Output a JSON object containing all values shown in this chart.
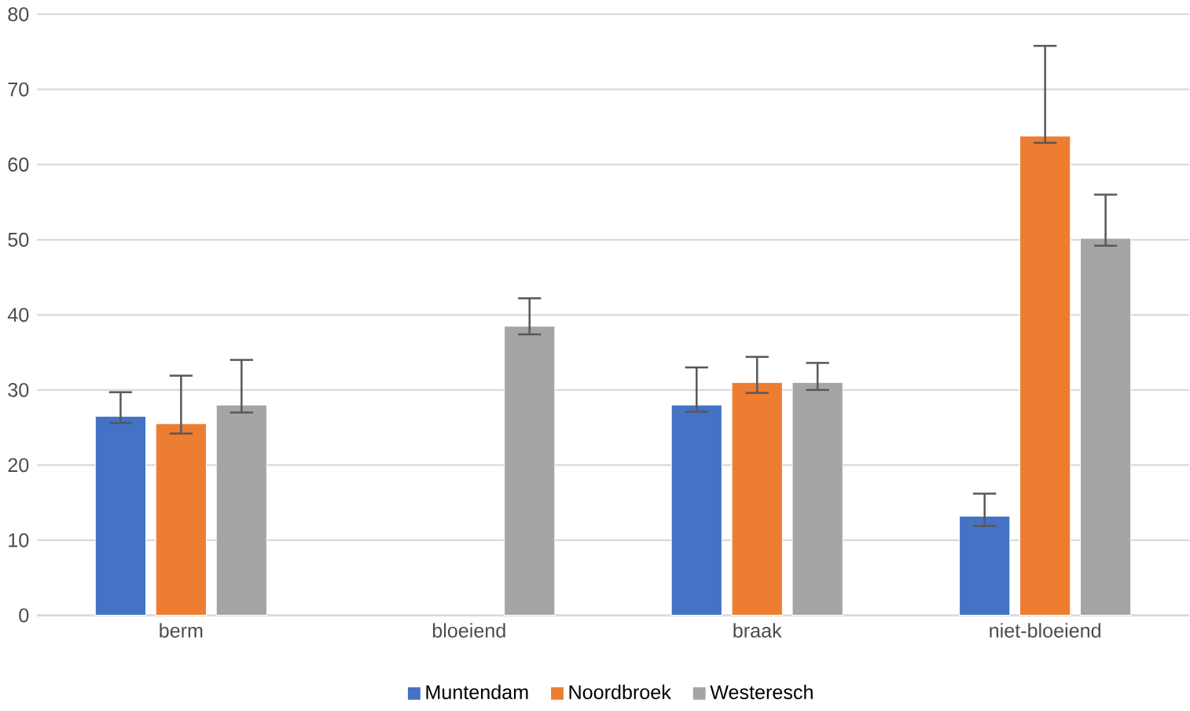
{
  "chart_data": {
    "type": "bar",
    "categories": [
      "berm",
      "bloeiend",
      "braak",
      "niet-bloeiend"
    ],
    "series": [
      {
        "name": "Muntendam",
        "color": "#4472c4",
        "values": [
          26.5,
          null,
          28,
          13.2
        ],
        "errors": [
          [
            25.6,
            29.7
          ],
          null,
          [
            27.1,
            33.0
          ],
          [
            11.9,
            16.2
          ]
        ]
      },
      {
        "name": "Noordbroek",
        "color": "#ed7d31",
        "values": [
          25.5,
          null,
          31,
          63.8
        ],
        "errors": [
          [
            24.2,
            31.9
          ],
          null,
          [
            29.6,
            34.4
          ],
          [
            62.9,
            75.8
          ]
        ]
      },
      {
        "name": "Westeresch",
        "color": "#a5a5a5",
        "values": [
          28,
          38.5,
          31,
          50.2
        ],
        "errors": [
          [
            27.0,
            34.0
          ],
          [
            37.4,
            42.2
          ],
          [
            30.0,
            33.6
          ],
          [
            49.2,
            56.0
          ]
        ]
      }
    ],
    "ylim": [
      0,
      80
    ],
    "yticks": [
      0,
      10,
      20,
      30,
      40,
      50,
      60,
      70,
      80
    ],
    "grid": "y",
    "legend": "bottom"
  }
}
